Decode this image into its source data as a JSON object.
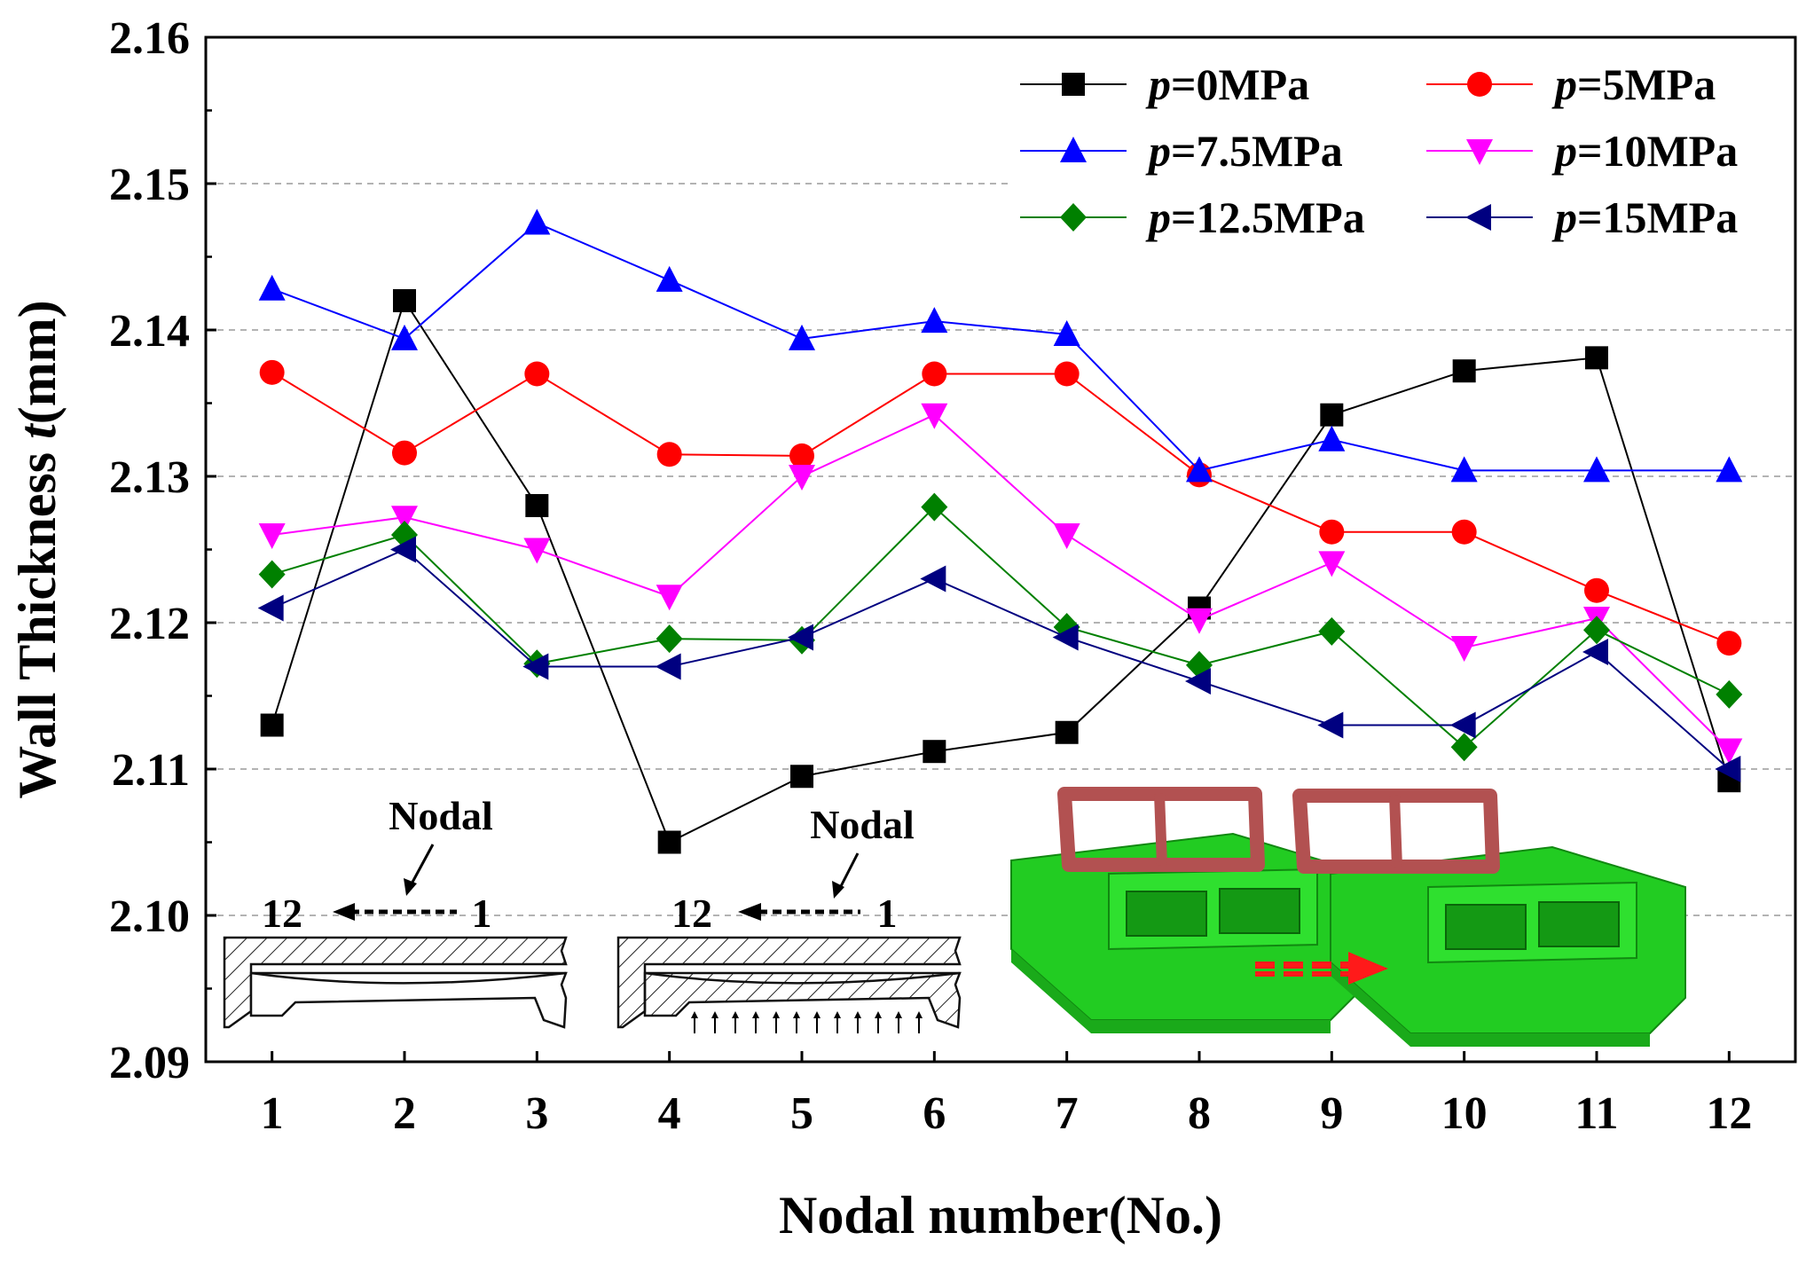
{
  "chart_data": {
    "type": "line",
    "title": "",
    "xlabel": "Nodal number(No.)",
    "ylabel_prefix": "Wall Thickness ",
    "ylabel_var": "t",
    "ylabel_suffix": "(mm)",
    "x": [
      1,
      2,
      3,
      4,
      5,
      6,
      7,
      8,
      9,
      10,
      11,
      12
    ],
    "xlim": [
      0.5,
      12.5
    ],
    "ylim": [
      2.09,
      2.16
    ],
    "yticks": [
      "2.09",
      "2.10",
      "2.11",
      "2.12",
      "2.13",
      "2.14",
      "2.15",
      "2.16"
    ],
    "grid": "dashed horizontal",
    "legend_position": "top-right",
    "series": [
      {
        "name": "p=0MPa",
        "var": "p",
        "label": "=0MPa",
        "color": "#000000",
        "marker": "square",
        "values": [
          2.113,
          2.142,
          2.128,
          2.105,
          2.1095,
          2.1112,
          2.1125,
          2.121,
          2.1342,
          2.1372,
          2.1381,
          2.1092
        ]
      },
      {
        "name": "p=5MPa",
        "var": "p",
        "label": "=5MPa",
        "color": "#ff0000",
        "marker": "circle",
        "values": [
          2.1371,
          2.1316,
          2.137,
          2.1315,
          2.1314,
          2.137,
          2.137,
          2.1301,
          2.1262,
          2.1262,
          2.1222,
          2.1186
        ]
      },
      {
        "name": "p=7.5MPa",
        "var": "p",
        "label": "=7.5MPa",
        "color": "#0000ff",
        "marker": "triangle-up",
        "values": [
          2.1428,
          2.1394,
          2.1473,
          2.1434,
          2.1394,
          2.1406,
          2.1397,
          2.1304,
          2.1325,
          2.1304,
          2.1304,
          2.1304
        ]
      },
      {
        "name": "p=10MPa",
        "var": "p",
        "label": "=10MPa",
        "color": "#ff00ff",
        "marker": "triangle-down",
        "values": [
          2.126,
          2.1272,
          2.125,
          2.1218,
          2.13,
          2.1342,
          2.126,
          2.1202,
          2.1241,
          2.1183,
          2.1203,
          2.1113
        ]
      },
      {
        "name": "p=12.5MPa",
        "var": "p",
        "label": "=12.5MPa",
        "color": "#008000",
        "marker": "diamond",
        "values": [
          2.1233,
          2.126,
          2.1172,
          2.1189,
          2.1188,
          2.1279,
          2.1197,
          2.1171,
          2.1194,
          2.1115,
          2.1195,
          2.1151
        ]
      },
      {
        "name": "p=15MPa",
        "var": "p",
        "label": "=15MPa",
        "color": "#000080",
        "marker": "triangle-left",
        "values": [
          2.121,
          2.125,
          2.117,
          2.117,
          2.119,
          2.123,
          2.119,
          2.116,
          2.113,
          2.113,
          2.118,
          2.11
        ]
      }
    ],
    "annotations": [
      {
        "text": "Nodal"
      },
      {
        "text": "12"
      },
      {
        "text": "1"
      },
      {
        "text": "Nodal"
      },
      {
        "text": "12"
      },
      {
        "text": "1"
      }
    ]
  }
}
